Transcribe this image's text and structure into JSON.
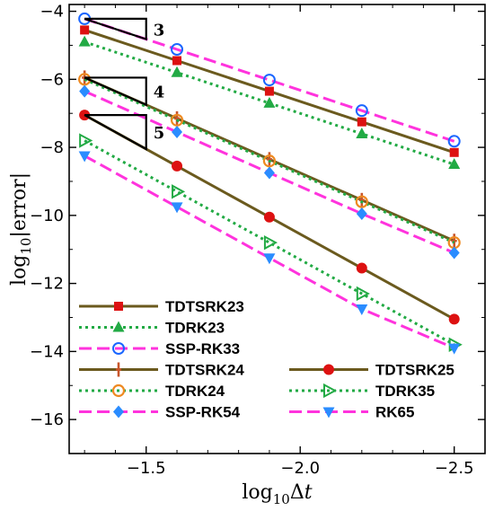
{
  "chart_data": {
    "type": "line",
    "xlabel": {
      "pre": "log",
      "sub": "10",
      "post": "Δ",
      "var": "t"
    },
    "ylabel": {
      "pre": "log",
      "sub": "10",
      "post": "|error|"
    },
    "xlim": [
      -1.25,
      -2.6
    ],
    "ylim": [
      -17,
      -3.8
    ],
    "x_ticks": [
      -1.5,
      -2.0,
      -2.5
    ],
    "x_tick_labels": [
      "−1.5",
      "−2.0",
      "−2.5"
    ],
    "y_ticks": [
      -16,
      -14,
      -12,
      -10,
      -8,
      -6,
      -4
    ],
    "y_tick_labels": [
      "−16",
      "−14",
      "−12",
      "−10",
      "−8",
      "−6",
      "−4"
    ],
    "grid": false,
    "x": [
      -1.3,
      -1.6,
      -1.9,
      -2.2,
      -2.5
    ],
    "series": [
      {
        "name": "TDTSRK23",
        "values": [
          -4.55,
          -5.45,
          -6.35,
          -7.25,
          -8.15
        ],
        "color": "#6b5a1e",
        "dash": "solid",
        "marker": "square"
      },
      {
        "name": "TDRK23",
        "values": [
          -4.9,
          -5.8,
          -6.7,
          -7.6,
          -8.5
        ],
        "color": "#22aa44",
        "dash": "dotted",
        "marker": "triangle-up"
      },
      {
        "name": "SSP-RK33",
        "values": [
          -4.22,
          -5.12,
          -6.02,
          -6.92,
          -7.82
        ],
        "color": "#ff33dd",
        "dash": "dashed",
        "marker": "circle-open-blue"
      },
      {
        "name": "TDTSRK24",
        "values": [
          -5.95,
          -7.15,
          -8.35,
          -9.55,
          -10.75
        ],
        "color": "#6b5a1e",
        "dash": "solid",
        "marker": "plus"
      },
      {
        "name": "TDRK24",
        "values": [
          -6.0,
          -7.2,
          -8.4,
          -9.6,
          -10.8
        ],
        "color": "#22aa44",
        "dash": "dotted",
        "marker": "circle-open-orange"
      },
      {
        "name": "SSP-RK54",
        "values": [
          -6.35,
          -7.55,
          -8.75,
          -9.95,
          -11.1
        ],
        "color": "#ff33dd",
        "dash": "dashed",
        "marker": "diamond"
      },
      {
        "name": "TDTSRK25",
        "values": [
          -7.05,
          -8.55,
          -10.05,
          -11.55,
          -13.05
        ],
        "color": "#6b5a1e",
        "dash": "solid",
        "marker": "circle-red"
      },
      {
        "name": "TDRK35",
        "values": [
          -7.8,
          -9.3,
          -10.8,
          -12.3,
          -13.8
        ],
        "color": "#22aa44",
        "dash": "dotted",
        "marker": "triangle-right"
      },
      {
        "name": "RK65",
        "values": [
          -8.25,
          -9.75,
          -11.25,
          -12.75,
          -13.9
        ],
        "color": "#ff33dd",
        "dash": "dashed",
        "marker": "triangle-down"
      }
    ],
    "slope_triangles": [
      {
        "label": "3",
        "x0": -1.3,
        "x1": -1.5,
        "y_top": -4.22,
        "y_bottom": -4.82
      },
      {
        "label": "4",
        "x0": -1.3,
        "x1": -1.5,
        "y_top": -5.95,
        "y_bottom": -6.75
      },
      {
        "label": "5",
        "x0": -1.3,
        "x1": -1.5,
        "y_top": -7.05,
        "y_bottom": -8.05
      }
    ],
    "legend": {
      "placement": "lower-left",
      "columns": [
        [
          "TDTSRK23",
          "TDRK23",
          "SSP-RK33",
          "TDTSRK24",
          "TDRK24",
          "SSP-RK54"
        ],
        [
          "TDTSRK25",
          "TDRK35",
          "RK65"
        ]
      ]
    },
    "marker_colors": {
      "blue": "#1a66ff",
      "orange": "#ee8a22",
      "red": "#dd1111",
      "sky": "#2a8cff"
    }
  }
}
